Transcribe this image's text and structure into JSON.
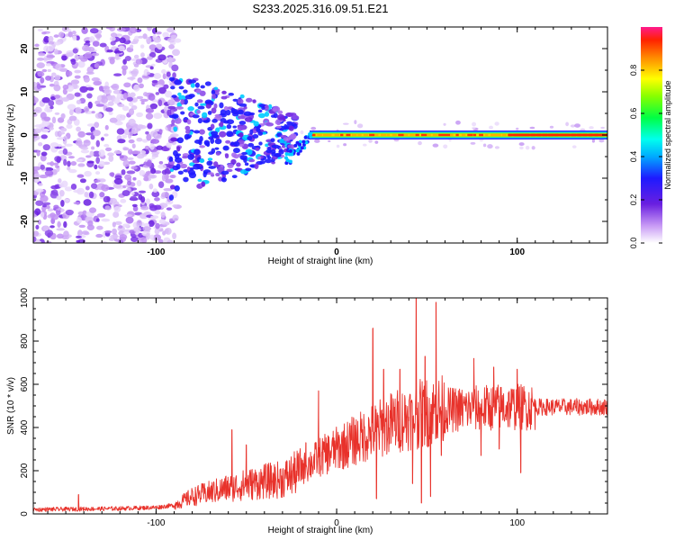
{
  "title": "S233.2025.316.09.51.E21",
  "chart_data": [
    {
      "type": "heatmap",
      "xlabel": "Height of straight line (km)",
      "ylabel": "Frequency (Hz)",
      "xlim": [
        -168,
        150
      ],
      "ylim": [
        -25,
        25
      ],
      "x_ticks": [
        -100,
        0,
        100
      ],
      "y_ticks": [
        -20,
        -10,
        0,
        10,
        20
      ],
      "colorbar": {
        "label": "Normalized spectral amplitude",
        "range": [
          0,
          1
        ],
        "ticks": [
          "0.0",
          "0.2",
          "0.4",
          "0.6",
          "0.8"
        ]
      },
      "description_values": {
        "noise_region_x": [
          -168,
          -90
        ],
        "scattered_region_x": [
          -90,
          -25
        ],
        "transition_x": [
          -25,
          -15
        ],
        "stable_line_x": [
          -15,
          150
        ],
        "stable_line_frequency": 0
      }
    },
    {
      "type": "line",
      "xlabel": "Height of straight line (km)",
      "ylabel": "SNR (10 * v/v)",
      "xlim": [
        -168,
        150
      ],
      "ylim": [
        0,
        1000
      ],
      "x_ticks": [
        -100,
        0,
        100
      ],
      "y_ticks": [
        0,
        200,
        400,
        600,
        800,
        1000
      ],
      "series": [
        {
          "color": "#e8322b",
          "trend_x": [
            -168,
            -120,
            -100,
            -90,
            -80,
            -60,
            -40,
            -30,
            -20,
            -10,
            0,
            10,
            20,
            30,
            40,
            50,
            60,
            70,
            80,
            90,
            100,
            110,
            120,
            130,
            140,
            150
          ],
          "trend_y": [
            20,
            25,
            30,
            40,
            80,
            120,
            150,
            160,
            200,
            260,
            300,
            340,
            380,
            420,
            450,
            470,
            480,
            485,
            490,
            495,
            495,
            495,
            495,
            495,
            495,
            495
          ],
          "spikes": [
            {
              "x": -143,
              "y": 90
            },
            {
              "x": -58,
              "y": 390
            },
            {
              "x": -50,
              "y": 320
            },
            {
              "x": -19,
              "y": 250
            },
            {
              "x": -17,
              "y": 330
            },
            {
              "x": -10,
              "y": 570
            },
            {
              "x": 20,
              "y": 860
            },
            {
              "x": 22,
              "y": 70
            },
            {
              "x": 26,
              "y": 670
            },
            {
              "x": 35,
              "y": 670
            },
            {
              "x": 40,
              "y": 430
            },
            {
              "x": 42,
              "y": 140
            },
            {
              "x": 44,
              "y": 1000
            },
            {
              "x": 47,
              "y": 50
            },
            {
              "x": 49,
              "y": 730
            },
            {
              "x": 52,
              "y": 80
            },
            {
              "x": 55,
              "y": 980
            },
            {
              "x": 58,
              "y": 270
            },
            {
              "x": 76,
              "y": 720
            },
            {
              "x": 80,
              "y": 270
            },
            {
              "x": 87,
              "y": 680
            },
            {
              "x": 90,
              "y": 300
            },
            {
              "x": 100,
              "y": 670
            },
            {
              "x": 102,
              "y": 190
            }
          ]
        }
      ]
    }
  ]
}
